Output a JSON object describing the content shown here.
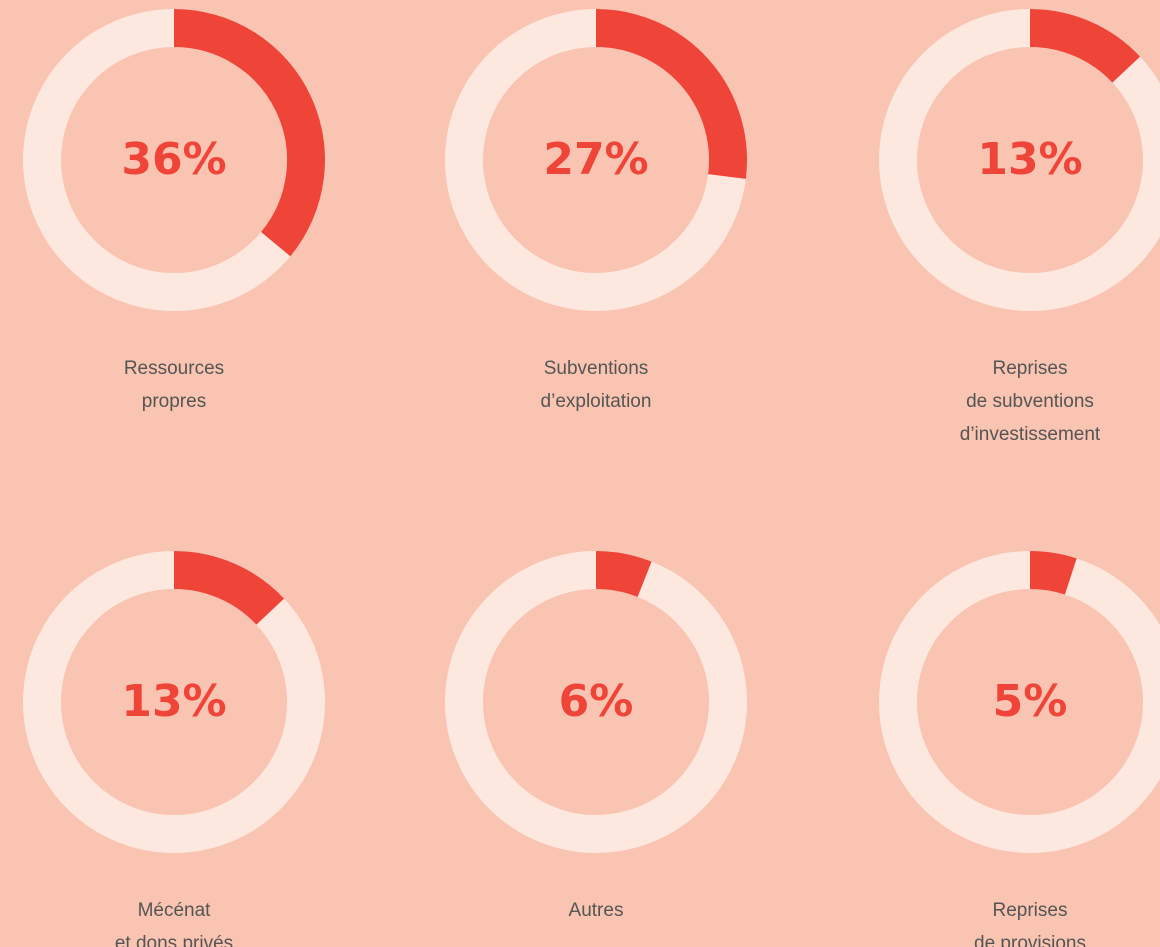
{
  "chart_data": [
    {
      "type": "donut",
      "values": [
        36
      ],
      "value_labels": [
        "36%"
      ],
      "label": [
        "Ressources",
        "propres"
      ],
      "color": "#ef4438",
      "track_color": "#fde8e0"
    },
    {
      "type": "donut",
      "values": [
        27
      ],
      "value_labels": [
        "27%"
      ],
      "label": [
        "Subventions",
        "d’exploitation"
      ],
      "color": "#ef4438",
      "track_color": "#fde8e0"
    },
    {
      "type": "donut",
      "values": [
        13
      ],
      "value_labels": [
        "13%"
      ],
      "label": [
        "Reprises",
        "de subventions",
        "d’investissement"
      ],
      "color": "#ef4438",
      "track_color": "#fde8e0"
    },
    {
      "type": "donut",
      "values": [
        13
      ],
      "value_labels": [
        "13%"
      ],
      "label": [
        "Mécénat",
        "et dons privés"
      ],
      "color": "#ef4438",
      "track_color": "#fde8e0"
    },
    {
      "type": "donut",
      "values": [
        6
      ],
      "value_labels": [
        "6%"
      ],
      "label": [
        "Autres"
      ],
      "color": "#ef4438",
      "track_color": "#fde8e0"
    },
    {
      "type": "donut",
      "values": [
        5
      ],
      "value_labels": [
        "5%"
      ],
      "label": [
        "Reprises",
        "de provisions"
      ],
      "color": "#ef4438",
      "track_color": "#fde8e0"
    }
  ]
}
